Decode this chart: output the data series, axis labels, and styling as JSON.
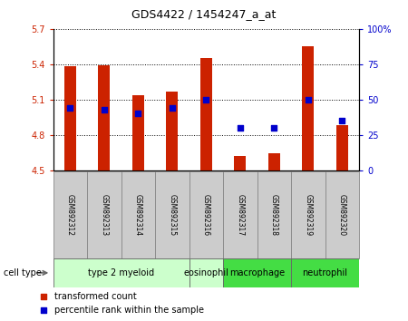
{
  "title": "GDS4422 / 1454247_a_at",
  "samples": [
    "GSM892312",
    "GSM892313",
    "GSM892314",
    "GSM892315",
    "GSM892316",
    "GSM892317",
    "GSM892318",
    "GSM892319",
    "GSM892320"
  ],
  "transformed_counts": [
    5.38,
    5.39,
    5.14,
    5.17,
    5.45,
    4.62,
    4.64,
    5.55,
    4.88
  ],
  "percentile_ranks": [
    44,
    43,
    40,
    44,
    50,
    30,
    30,
    50,
    35
  ],
  "bar_bottom": 4.5,
  "ylim_left": [
    4.5,
    5.7
  ],
  "ylim_right": [
    0,
    100
  ],
  "yticks_left": [
    4.5,
    4.8,
    5.1,
    5.4,
    5.7
  ],
  "yticks_right": [
    0,
    25,
    50,
    75,
    100
  ],
  "ytick_labels_left": [
    "4.5",
    "4.8",
    "5.1",
    "5.4",
    "5.7"
  ],
  "ytick_labels_right": [
    "0",
    "25",
    "50",
    "75",
    "100%"
  ],
  "bar_color": "#cc2200",
  "dot_color": "#0000cc",
  "cell_types": [
    {
      "label": "type 2 myeloid",
      "samples": [
        0,
        1,
        2,
        3
      ],
      "color": "#ccffcc"
    },
    {
      "label": "eosinophil",
      "samples": [
        4
      ],
      "color": "#ccffcc"
    },
    {
      "label": "macrophage",
      "samples": [
        5,
        6
      ],
      "color": "#44dd44"
    },
    {
      "label": "neutrophil",
      "samples": [
        7,
        8
      ],
      "color": "#44dd44"
    }
  ],
  "legend_bar_label": "transformed count",
  "legend_dot_label": "percentile rank within the sample",
  "bar_width": 0.35,
  "dot_size": 25,
  "tick_label_color_left": "#cc2200",
  "tick_label_color_right": "#0000cc",
  "sample_box_color": "#cccccc",
  "sample_box_edge": "#888888"
}
